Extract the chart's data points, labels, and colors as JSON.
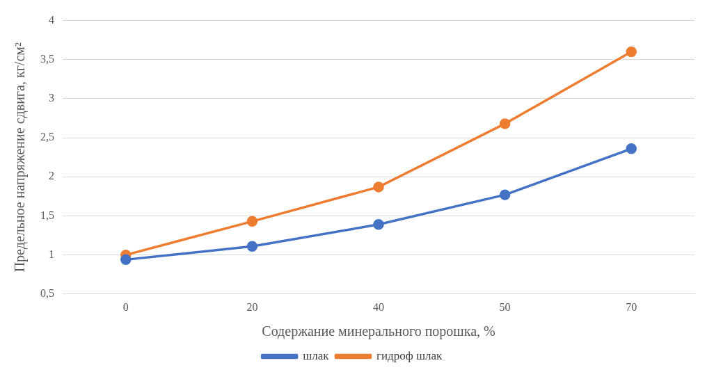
{
  "chart_data": {
    "type": "line",
    "xlabel": "Содержание минерального порошка, %",
    "ylabel": "Предельное напряжение сдвига, кг/см²",
    "categories": [
      "0",
      "20",
      "40",
      "50",
      "70"
    ],
    "series": [
      {
        "name": "шлак",
        "color": "#4472c4",
        "values": [
          0.94,
          1.11,
          1.39,
          1.77,
          2.36
        ]
      },
      {
        "name": "гидроф шлак",
        "color": "#ed7d31",
        "values": [
          1.0,
          1.43,
          1.87,
          2.68,
          3.6
        ]
      }
    ],
    "ylim": [
      0.5,
      4
    ],
    "yticks": [
      {
        "value": 0.5,
        "label": "0,5"
      },
      1,
      {
        "value": 1.5,
        "label": "1,5"
      },
      2,
      {
        "value": 2.5,
        "label": "2,5"
      },
      3,
      {
        "value": 3.5,
        "label": "3,5"
      },
      4
    ],
    "grid": "y",
    "legend": "bottom",
    "marker": "circle",
    "line_style": "solid"
  }
}
